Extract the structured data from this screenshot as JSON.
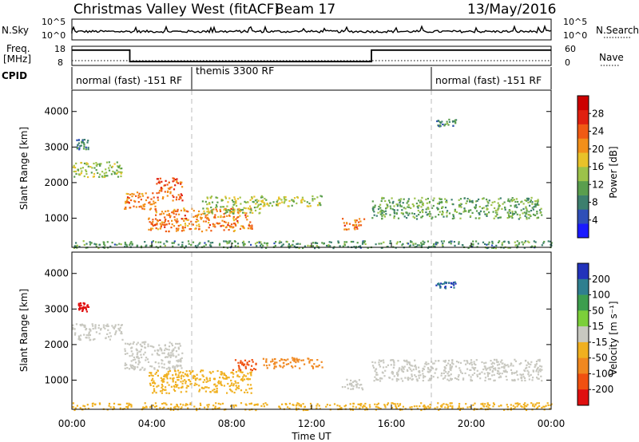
{
  "header": {
    "station": "Christmas Valley West (fitACF)",
    "beam": "Beam 17",
    "date": "13/May/2016"
  },
  "time_axis": {
    "label": "Time UT",
    "ticks": [
      "00:00",
      "04:00",
      "08:00",
      "12:00",
      "16:00",
      "20:00",
      "00:00"
    ],
    "tick_hours": [
      0,
      4,
      8,
      12,
      16,
      20,
      24
    ],
    "dashed_hours": [
      6,
      18
    ]
  },
  "strip": {
    "nsky_label": "N.Sky",
    "nsky_ticks": [
      "10^5",
      "10^0"
    ],
    "nsearch_label": "N.Search",
    "nsearch_ticks": [
      "10^5",
      "10^0"
    ],
    "freq_label_1": "Freq.",
    "freq_label_2": "[MHz]",
    "freq_ticks": [
      "18",
      "8"
    ],
    "freq_range": [
      8,
      18
    ],
    "nave_label": "Nave",
    "nave_ticks": [
      "60",
      "0"
    ],
    "nave_range": [
      0,
      60
    ],
    "cpid_label": "CPID",
    "freq_steps": [
      {
        "t0": 0,
        "t1": 2.9,
        "v": 16
      },
      {
        "t0": 2.9,
        "t1": 15.0,
        "v": 10
      },
      {
        "t0": 15.0,
        "t1": 24,
        "v": 16
      }
    ],
    "nave_level": 15,
    "modes": [
      {
        "label": "normal (fast) -151 RF",
        "t_start": 0
      },
      {
        "label": "themis 3300 RF",
        "t_start": 6
      },
      {
        "label": "normal (fast) -151 RF",
        "t_start": 18
      }
    ]
  },
  "chart_data": [
    {
      "type": "heatmap",
      "title": "Power",
      "xlabel": "Time UT",
      "ylabel": "Slant Range [km]",
      "y_ticks": [
        1000,
        2000,
        3000,
        4000
      ],
      "ylim": [
        180,
        4600
      ],
      "xlim": [
        0,
        24
      ],
      "colorbar": {
        "label": "Power [dB]",
        "ticks": [
          "4",
          "8",
          "12",
          "16",
          "20",
          "24",
          "28"
        ],
        "tick_values": [
          4,
          8,
          12,
          16,
          20,
          24,
          28
        ],
        "range": [
          0,
          32
        ],
        "colors": [
          "#1a1aff",
          "#2f4fb8",
          "#3d7f6e",
          "#5a9e4e",
          "#9cc24a",
          "#e8c22a",
          "#f28f1a",
          "#f05a14",
          "#e02010",
          "#cc0000"
        ]
      },
      "regions": [
        {
          "t0": 0.0,
          "t1": 2.5,
          "r0": 2150,
          "r1": 2600,
          "v": 14
        },
        {
          "t0": 0.2,
          "t1": 0.8,
          "r0": 2950,
          "r1": 3250,
          "v": 8
        },
        {
          "t0": 2.6,
          "t1": 4.2,
          "r0": 1250,
          "r1": 1750,
          "v": 22
        },
        {
          "t0": 4.2,
          "t1": 5.5,
          "r0": 1500,
          "r1": 2150,
          "v": 24
        },
        {
          "t0": 3.8,
          "t1": 9.0,
          "r0": 650,
          "r1": 1300,
          "v": 22
        },
        {
          "t0": 6.5,
          "t1": 9.5,
          "r0": 1150,
          "r1": 1650,
          "v": 14
        },
        {
          "t0": 9.5,
          "t1": 12.5,
          "r0": 1350,
          "r1": 1650,
          "v": 14
        },
        {
          "t0": 13.5,
          "t1": 14.6,
          "r0": 700,
          "r1": 1050,
          "v": 22
        },
        {
          "t0": 15.0,
          "t1": 23.5,
          "r0": 1000,
          "r1": 1600,
          "v": 12
        },
        {
          "t0": 18.2,
          "t1": 19.2,
          "r0": 3600,
          "r1": 3800,
          "v": 10
        },
        {
          "t0": 0.0,
          "t1": 24.0,
          "r0": 180,
          "r1": 380,
          "v": 10
        }
      ]
    },
    {
      "type": "heatmap",
      "title": "Velocity",
      "xlabel": "Time UT",
      "ylabel": "Slant Range [km]",
      "y_ticks": [
        1000,
        2000,
        3000,
        4000
      ],
      "ylim": [
        180,
        4600
      ],
      "xlim": [
        0,
        24
      ],
      "colorbar": {
        "label": "Velocity [m s⁻¹]",
        "ticks": [
          "200",
          "100",
          "50",
          "15",
          "-15",
          "-50",
          "-100",
          "-200"
        ],
        "colors": [
          "#2233bb",
          "#2f7f8f",
          "#3d9e4e",
          "#7ccf3a",
          "#c8c8c0",
          "#f0b020",
          "#f08820",
          "#f05010",
          "#e01010"
        ]
      },
      "regions": [
        {
          "t0": 0.0,
          "t1": 2.5,
          "r0": 2150,
          "r1": 2600,
          "v": 0
        },
        {
          "t0": 0.3,
          "t1": 0.8,
          "r0": 2950,
          "r1": 3200,
          "v": -220
        },
        {
          "t0": 2.6,
          "t1": 5.5,
          "r0": 1300,
          "r1": 2100,
          "v": -5
        },
        {
          "t0": 3.8,
          "t1": 9.0,
          "r0": 650,
          "r1": 1300,
          "v": -40
        },
        {
          "t0": 8.0,
          "t1": 9.2,
          "r0": 1300,
          "r1": 1600,
          "v": -180
        },
        {
          "t0": 9.5,
          "t1": 12.5,
          "r0": 1350,
          "r1": 1650,
          "v": -60
        },
        {
          "t0": 13.5,
          "t1": 14.6,
          "r0": 700,
          "r1": 1050,
          "v": 0
        },
        {
          "t0": 15.0,
          "t1": 23.5,
          "r0": 1000,
          "r1": 1600,
          "v": 0
        },
        {
          "t0": 18.2,
          "t1": 19.2,
          "r0": 3600,
          "r1": 3800,
          "v": 200
        },
        {
          "t0": 0.0,
          "t1": 24.0,
          "r0": 180,
          "r1": 380,
          "v": -30
        }
      ]
    }
  ]
}
